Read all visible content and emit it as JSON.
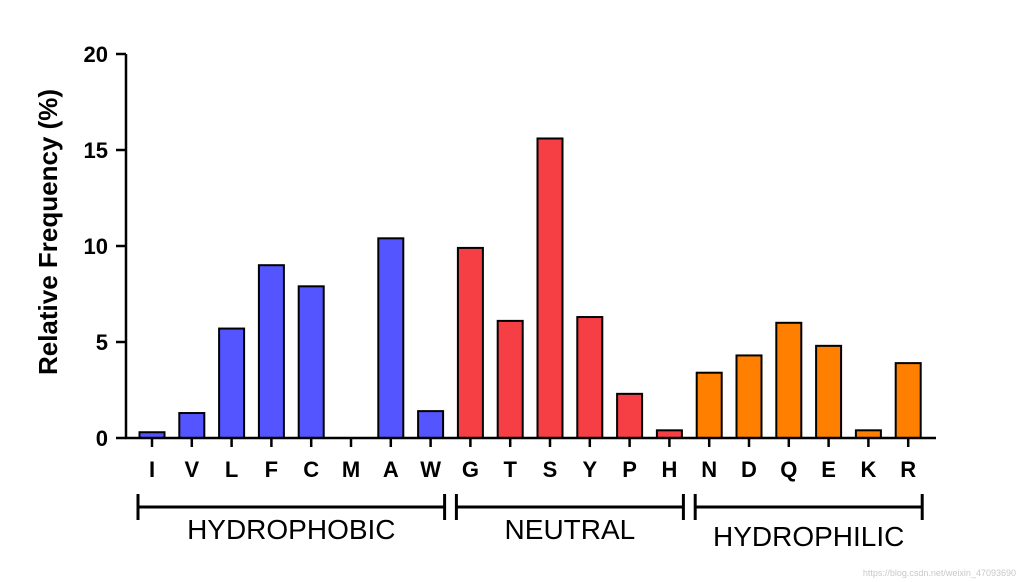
{
  "chart_data": {
    "type": "bar",
    "title": "",
    "xlabel": "",
    "ylabel": "Relative Frequency (%)",
    "ylim": [
      0,
      20
    ],
    "yticks": [
      0,
      5,
      10,
      15,
      20
    ],
    "grid": false,
    "categories": [
      "I",
      "V",
      "L",
      "F",
      "C",
      "M",
      "A",
      "W",
      "G",
      "T",
      "S",
      "Y",
      "P",
      "H",
      "N",
      "D",
      "Q",
      "E",
      "K",
      "R"
    ],
    "values": [
      0.3,
      1.3,
      5.7,
      9.0,
      7.9,
      0,
      10.4,
      1.4,
      9.9,
      6.1,
      15.6,
      6.3,
      2.3,
      0.4,
      3.4,
      4.3,
      6.0,
      4.8,
      0.4,
      3.9
    ],
    "groups": [
      {
        "label": "HYDROPHOBIC",
        "start": 0,
        "end": 7,
        "color": "#5555ff"
      },
      {
        "label": "NEUTRAL",
        "start": 8,
        "end": 13,
        "color": "#f53f45"
      },
      {
        "label": "HYDROPHILIC",
        "start": 14,
        "end": 19,
        "color": "#ff8000"
      }
    ]
  },
  "watermark": "https://blog.csdn.net/weixin_47093690"
}
